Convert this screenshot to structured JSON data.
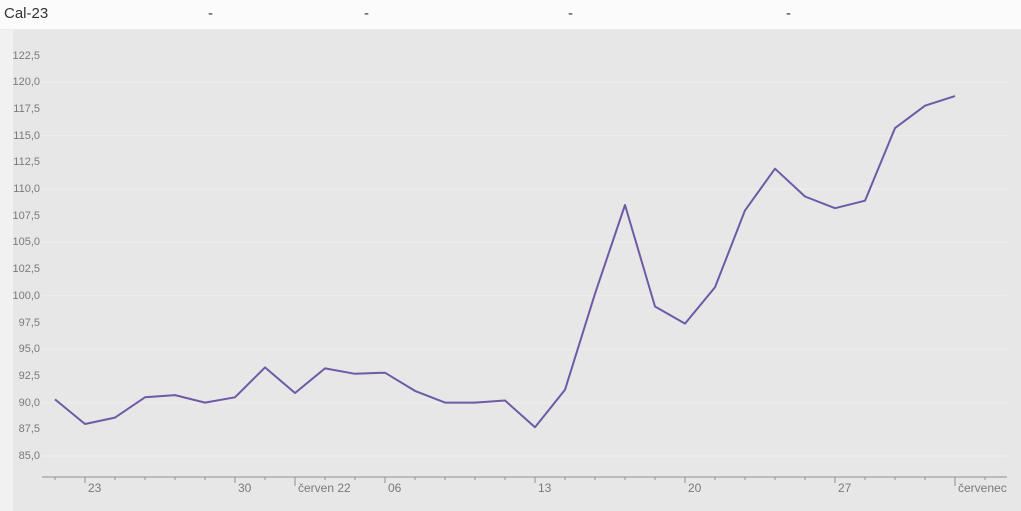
{
  "header": {
    "instrument": "Cal-23",
    "placeholders": [
      "-",
      "-",
      "-",
      "-"
    ]
  },
  "colors": {
    "line": "#6c5ba7",
    "gridline": "#f2ecec",
    "axis": "#8f8f8f",
    "chart_background": "#e8e7e7",
    "header_background": "#fbfbfb",
    "label_text": "#7a7a7a"
  },
  "chart_data": {
    "type": "line",
    "title": "Cal-23",
    "legend": "none",
    "grid": "horizontal-every-5",
    "decimal_separator": ",",
    "ylim": [
      85.0,
      122.5
    ],
    "y_tick_step": 2.5,
    "y_gridline_step": 5.0,
    "y_tick_values": [
      85.0,
      87.5,
      90.0,
      92.5,
      95.0,
      97.5,
      100.0,
      102.5,
      105.0,
      107.5,
      110.0,
      112.5,
      115.0,
      117.5,
      120.0,
      122.5
    ],
    "series": [
      {
        "name": "Cal-23",
        "values": [
          90.3,
          88.0,
          88.6,
          90.5,
          90.7,
          90.0,
          90.5,
          93.3,
          90.9,
          93.2,
          92.7,
          92.8,
          91.1,
          90.0,
          90.0,
          90.2,
          87.7,
          91.2,
          100.2,
          108.5,
          99.0,
          97.4,
          100.8,
          108.0,
          111.9,
          109.3,
          108.2,
          108.9,
          115.7,
          117.8,
          118.7
        ]
      }
    ],
    "x_points_per_day": "one point per weekday, first point two weekdays before the 23 tick",
    "x_tick_labels": [
      {
        "index": 1,
        "label": "23",
        "type": "week"
      },
      {
        "index": 6,
        "label": "30",
        "type": "week"
      },
      {
        "index": 8,
        "label": "červen 22",
        "type": "month"
      },
      {
        "index": 11,
        "label": "06",
        "type": "week"
      },
      {
        "index": 16,
        "label": "13",
        "type": "week"
      },
      {
        "index": 21,
        "label": "20",
        "type": "week"
      },
      {
        "index": 26,
        "label": "27",
        "type": "week"
      },
      {
        "index": 30,
        "label": "červenec",
        "type": "month"
      }
    ],
    "minor_tick_count": 32
  }
}
